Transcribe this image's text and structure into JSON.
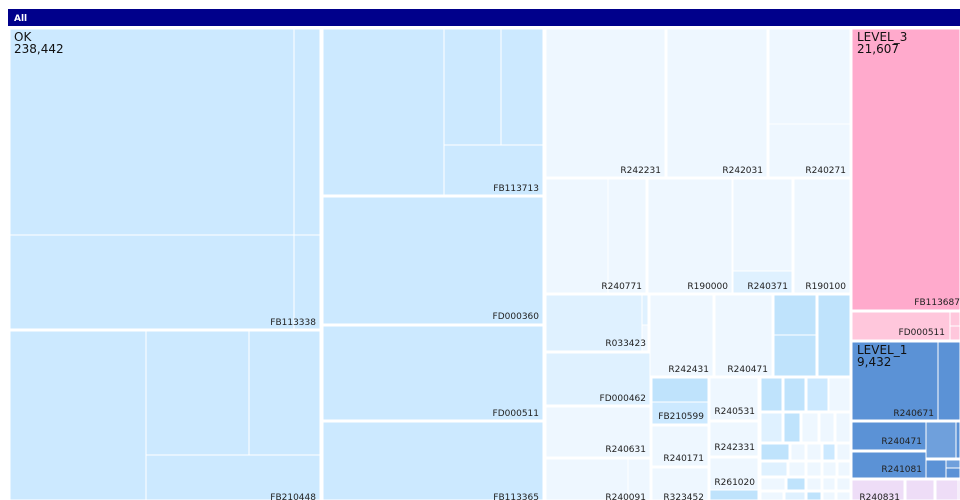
{
  "chart_data": {
    "type": "treemap",
    "root_label": "All",
    "colors": {
      "header": "#00008B",
      "OK": "#cce9ff",
      "OK_mid": "#dff1ff",
      "OK_light": "#eef7ff",
      "OK_sky": "#bfe3fc",
      "LEVEL_3": "#ffaacc",
      "LEVEL_3_light": "#ffc7dc",
      "LEVEL_1": "#5b92d6",
      "LEVEL_1_alt": "#6fa0dc",
      "LEVEL_lavender": "#eeddf7"
    },
    "groups": [
      {
        "name": "OK",
        "value": "238,442",
        "value_num": 238442
      },
      {
        "name": "LEVEL_3",
        "value": "21,607",
        "value_num": 21607
      },
      {
        "name": "LEVEL_1",
        "value": "9,432",
        "value_num": 9432
      }
    ],
    "leaf_labels": [
      "FB113338",
      "FB210448",
      "FB113713",
      "FD000360",
      "FD000511",
      "FB113365",
      "R242231",
      "R242031",
      "R240271",
      "R240771",
      "R190000",
      "R240371",
      "R190100",
      "R033423",
      "R242431",
      "R240471",
      "FD000462",
      "FB210599",
      "R240531",
      "R240631",
      "R240171",
      "R242331",
      "R261020",
      "R240091",
      "R323452",
      "FB113687",
      "FD000511",
      "R240671",
      "R240471",
      "R241081",
      "R240831"
    ]
  }
}
